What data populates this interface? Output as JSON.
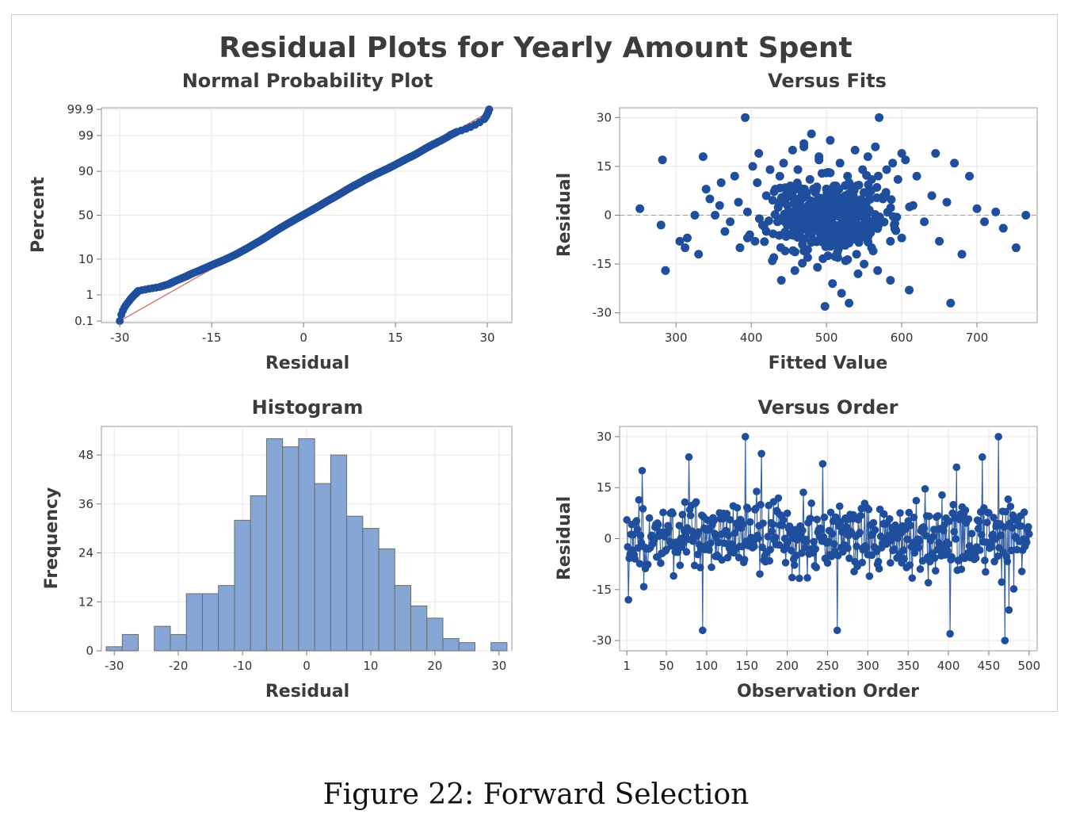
{
  "figure": {
    "main_title": "Residual Plots for Yearly Amount Spent",
    "caption": "Figure 22:  Forward Selection"
  },
  "colors": {
    "point": "#1f4e9c",
    "bar_fill": "#86a6d6",
    "bar_edge": "#6b6b6b",
    "fit_line": "#d06060",
    "grid": "#e6e6e6",
    "ref_line": "#a0a0a0"
  },
  "chart_data": [
    {
      "id": "npp",
      "type": "scatter",
      "title": "Normal Probability Plot",
      "xlabel": "Residual",
      "ylabel": "Percent",
      "x_ticks": [
        -30,
        -15,
        0,
        15,
        30
      ],
      "xlim": [
        -33,
        34
      ],
      "y_ticks": [
        0.1,
        1,
        10,
        50,
        90,
        99,
        99.9
      ],
      "y_tick_labels": [
        "0.1",
        "1",
        "10",
        "50",
        "90",
        "99",
        "99.9"
      ],
      "y_scale": "normal-probability",
      "fit_line": {
        "x": [
          -30,
          31
        ],
        "y": [
          0.1,
          99.9
        ]
      },
      "x": [
        -30,
        -28.5,
        -27.5,
        -27.2,
        -27,
        -23.5,
        -22,
        -21,
        -20,
        -19,
        -18.5,
        -17,
        -16,
        -15,
        -14,
        -13,
        -12,
        -11,
        -10,
        -9,
        -8,
        -7,
        -6,
        -5,
        -4,
        -3,
        -2,
        -1,
        0,
        1,
        2,
        3,
        4,
        5,
        6,
        7,
        8,
        9,
        10,
        11,
        12,
        13,
        14,
        15,
        16,
        17,
        18,
        19,
        20,
        21,
        22,
        24,
        25,
        29.5,
        30.3
      ],
      "y": [
        0.1,
        0.6,
        1.05,
        1.2,
        1.35,
        1.8,
        2.2,
        2.7,
        3.2,
        3.8,
        4.2,
        5.3,
        6.2,
        7.2,
        8.3,
        9.5,
        11,
        12.7,
        14.8,
        17.2,
        20,
        23,
        26.5,
        30.5,
        34.5,
        38.5,
        42.5,
        46.5,
        50.5,
        54.5,
        58.5,
        62.5,
        66.5,
        70,
        73.5,
        77,
        80,
        82.5,
        85,
        87,
        88.8,
        90.3,
        91.7,
        93,
        94.2,
        95.2,
        96,
        96.8,
        97.5,
        98,
        98.4,
        99.05,
        99.25,
        99.75,
        99.9
      ]
    },
    {
      "id": "fits",
      "type": "scatter",
      "title": "Versus Fits",
      "xlabel": "Fitted Value",
      "ylabel": "Residual",
      "x_ticks": [
        300,
        400,
        500,
        600,
        700
      ],
      "xlim": [
        225,
        780
      ],
      "y_ticks": [
        -30,
        -15,
        0,
        15,
        30
      ],
      "ylim": [
        -33,
        33
      ],
      "ref_line_y": 0,
      "x": [
        252,
        280,
        282,
        286,
        305,
        312,
        315,
        325,
        330,
        336,
        340,
        345,
        352,
        358,
        360,
        365,
        372,
        378,
        383,
        385,
        392,
        395,
        398,
        402,
        405,
        408,
        410,
        415,
        420,
        425,
        428,
        432,
        435,
        438,
        440,
        443,
        445,
        448,
        450,
        452,
        455,
        458,
        460,
        462,
        465,
        468,
        470,
        472,
        475,
        478,
        480,
        482,
        485,
        488,
        490,
        492,
        495,
        498,
        500,
        502,
        505,
        508,
        510,
        512,
        515,
        518,
        520,
        522,
        525,
        528,
        530,
        532,
        535,
        538,
        540,
        542,
        545,
        548,
        550,
        552,
        555,
        558,
        560,
        562,
        565,
        568,
        570,
        575,
        580,
        585,
        588,
        590,
        595,
        600,
        605,
        610,
        615,
        620,
        630,
        640,
        645,
        650,
        660,
        665,
        670,
        680,
        690,
        700,
        710,
        725,
        735,
        752,
        765,
        395,
        470,
        430,
        600,
        520,
        455,
        505,
        540,
        480,
        560,
        445,
        490,
        510,
        530,
        470,
        500,
        450,
        515,
        585,
        420
      ],
      "y": [
        2,
        -3,
        17,
        -17,
        -8,
        -10,
        -7,
        0,
        -12,
        18,
        8,
        5,
        0,
        3,
        10,
        -5,
        -2,
        12,
        4,
        -10,
        30,
        1,
        -6,
        15,
        -8,
        10,
        19,
        -3,
        6,
        14,
        -14,
        8,
        -2,
        12,
        -20,
        16,
        -11,
        3,
        -6,
        9,
        20,
        -17,
        5,
        14,
        -5,
        -9,
        22,
        2,
        -13,
        11,
        25,
        -2,
        7,
        -16,
        18,
        -8,
        4,
        -28,
        13,
        0,
        23,
        -21,
        9,
        -4,
        -13,
        16,
        1,
        -9,
        6,
        12,
        -27,
        3,
        -6,
        20,
        9,
        -18,
        2,
        14,
        -15,
        7,
        18,
        -4,
        11,
        -11,
        21,
        -17,
        30,
        5,
        14,
        -20,
        16,
        -3,
        11,
        -7,
        17,
        -23,
        3,
        12,
        -2,
        6,
        19,
        -8,
        4,
        -27,
        16,
        -12,
        12,
        2,
        -2,
        1,
        -4,
        -10,
        0,
        -7,
        21,
        -13,
        19,
        -24,
        8,
        13,
        -12,
        2,
        -10,
        4,
        17,
        -5,
        10,
        -11,
        -1,
        8,
        -5,
        -8,
        -5
      ],
      "r_note": ""
    },
    {
      "id": "hist",
      "type": "bar",
      "title": "Histogram",
      "xlabel": "Residual",
      "ylabel": "Frequency",
      "x_ticks": [
        -30,
        -20,
        -10,
        0,
        10,
        20,
        30
      ],
      "xlim": [
        -32,
        32
      ],
      "y_ticks": [
        0,
        12,
        24,
        36,
        48
      ],
      "ylim": [
        0,
        55
      ],
      "bin_width": 2.5,
      "bin_starts": [
        -31.25,
        -28.75,
        -26.25,
        -23.75,
        -21.25,
        -18.75,
        -16.25,
        -13.75,
        -11.25,
        -8.75,
        -6.25,
        -3.75,
        -1.25,
        1.25,
        3.75,
        6.25,
        8.75,
        11.25,
        13.75,
        16.25,
        18.75,
        21.25,
        23.75,
        26.25,
        28.75
      ],
      "values": [
        1,
        4,
        0,
        6,
        4,
        14,
        14,
        16,
        32,
        38,
        52,
        50,
        52,
        41,
        48,
        33,
        30,
        25,
        16,
        11,
        8,
        3,
        2,
        0,
        2
      ]
    },
    {
      "id": "order",
      "type": "line",
      "title": "Versus Order",
      "xlabel": "Observation Order",
      "ylabel": "Residual",
      "x_ticks": [
        1,
        50,
        100,
        150,
        200,
        250,
        300,
        350,
        400,
        450,
        500
      ],
      "xlim": [
        -8,
        510
      ],
      "y_ticks": [
        -30,
        -15,
        0,
        15,
        30
      ],
      "ylim": [
        -33,
        33
      ],
      "n_points": 500,
      "highlights": {
        "x": [
          3,
          20,
          78,
          95,
          148,
          168,
          244,
          262,
          402,
          410,
          442,
          462,
          470,
          475
        ],
        "y": [
          -18,
          20,
          24,
          -27,
          30,
          25,
          22,
          -27,
          -28,
          21,
          24,
          30,
          -30,
          -21
        ]
      }
    }
  ]
}
